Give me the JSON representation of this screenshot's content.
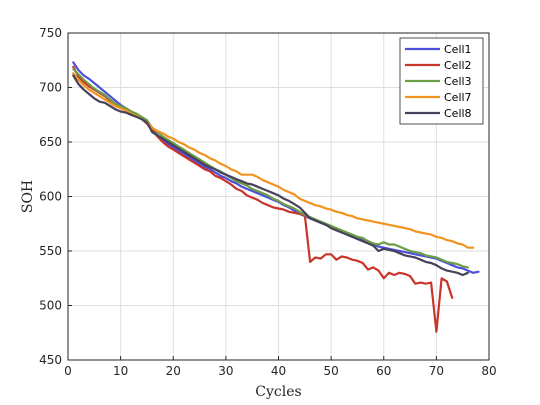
{
  "chart_data": {
    "type": "line",
    "xlabel": "Cycles",
    "ylabel": "SOH",
    "xlim": [
      0,
      80
    ],
    "ylim": [
      450,
      750
    ],
    "xticks": [
      0,
      10,
      20,
      30,
      40,
      50,
      60,
      70,
      80
    ],
    "yticks": [
      450,
      500,
      550,
      600,
      650,
      700,
      750
    ],
    "grid": true,
    "legend_position": "top-right",
    "series": [
      {
        "name": "Cell1",
        "color": "#4f4fdd",
        "x": [
          1,
          2,
          3,
          4,
          5,
          6,
          7,
          8,
          9,
          10,
          11,
          12,
          13,
          14,
          15,
          16,
          17,
          18,
          19,
          20,
          21,
          22,
          23,
          24,
          25,
          26,
          27,
          28,
          29,
          30,
          31,
          32,
          33,
          34,
          35,
          36,
          37,
          38,
          39,
          40,
          41,
          42,
          43,
          44,
          45,
          46,
          47,
          48,
          49,
          50,
          51,
          52,
          53,
          54,
          55,
          56,
          57,
          58,
          59,
          60,
          61,
          62,
          63,
          64,
          65,
          66,
          67,
          68,
          69,
          70,
          71,
          72,
          73,
          74,
          75,
          76,
          77,
          78
        ],
        "y": [
          723,
          716,
          711,
          708,
          704,
          700,
          696,
          692,
          688,
          684,
          681,
          678,
          675,
          672,
          669,
          662,
          656,
          652,
          648,
          645,
          642,
          639,
          636,
          633,
          630,
          627,
          625,
          622,
          619,
          617,
          614,
          612,
          609,
          607,
          605,
          603,
          601,
          599,
          597,
          595,
          592,
          590,
          587,
          584,
          582,
          580,
          578,
          576,
          574,
          572,
          570,
          568,
          566,
          564,
          562,
          560,
          558,
          556,
          554,
          553,
          552,
          551,
          550,
          549,
          548,
          547,
          546,
          545,
          544,
          543,
          541,
          539,
          537,
          535,
          534,
          532,
          530,
          531
        ]
      },
      {
        "name": "Cell2",
        "color": "#c8352b",
        "x": [
          1,
          2,
          3,
          4,
          5,
          6,
          7,
          8,
          9,
          10,
          11,
          12,
          13,
          14,
          15,
          16,
          17,
          18,
          19,
          20,
          21,
          22,
          23,
          24,
          25,
          26,
          27,
          28,
          29,
          30,
          31,
          32,
          33,
          34,
          35,
          36,
          37,
          38,
          39,
          40,
          41,
          42,
          43,
          44,
          45,
          46,
          47,
          48,
          49,
          50,
          51,
          52,
          53,
          54,
          55,
          56,
          57,
          58,
          59,
          60,
          61,
          62,
          63,
          64,
          65,
          66,
          67,
          68,
          69,
          70,
          71,
          72,
          73
        ],
        "y": [
          719,
          710,
          705,
          701,
          698,
          695,
          692,
          688,
          685,
          682,
          680,
          677,
          674,
          671,
          667,
          661,
          655,
          650,
          646,
          643,
          640,
          637,
          634,
          631,
          628,
          625,
          623,
          619,
          617,
          614,
          611,
          607,
          605,
          601,
          599,
          597,
          594,
          592,
          590,
          589,
          588,
          586,
          585,
          584,
          583,
          540,
          544,
          543,
          547,
          547,
          542,
          545,
          544,
          542,
          541,
          539,
          533,
          535,
          532,
          525,
          530,
          528,
          530,
          529,
          527,
          520,
          521,
          520,
          521,
          476,
          525,
          522,
          507
        ]
      },
      {
        "name": "Cell3",
        "color": "#6b9e45",
        "x": [
          1,
          2,
          3,
          4,
          5,
          6,
          7,
          8,
          9,
          10,
          11,
          12,
          13,
          14,
          15,
          16,
          17,
          18,
          19,
          20,
          21,
          22,
          23,
          24,
          25,
          26,
          27,
          28,
          29,
          30,
          31,
          32,
          33,
          34,
          35,
          36,
          37,
          38,
          39,
          40,
          41,
          42,
          43,
          44,
          45,
          46,
          47,
          48,
          49,
          50,
          51,
          52,
          53,
          54,
          55,
          56,
          57,
          58,
          59,
          60,
          61,
          62,
          63,
          64,
          65,
          66,
          67,
          68,
          69,
          70,
          71,
          72,
          73,
          74,
          75,
          76
        ],
        "y": [
          717,
          712,
          707,
          703,
          699,
          696,
          693,
          689,
          685,
          683,
          681,
          678,
          676,
          673,
          670,
          663,
          659,
          655,
          652,
          649,
          646,
          643,
          640,
          637,
          634,
          631,
          628,
          625,
          623,
          620,
          617,
          614,
          612,
          610,
          607,
          605,
          603,
          601,
          598,
          596,
          593,
          591,
          589,
          586,
          583,
          581,
          579,
          577,
          575,
          573,
          571,
          569,
          567,
          565,
          563,
          562,
          559,
          557,
          556,
          558,
          556,
          556,
          554,
          552,
          550,
          549,
          548,
          546,
          545,
          544,
          542,
          540,
          539,
          538,
          536,
          535
        ]
      },
      {
        "name": "Cell7",
        "color": "#f0941f",
        "x": [
          1,
          2,
          3,
          4,
          5,
          6,
          7,
          8,
          9,
          10,
          11,
          12,
          13,
          14,
          15,
          16,
          17,
          18,
          19,
          20,
          21,
          22,
          23,
          24,
          25,
          26,
          27,
          28,
          29,
          30,
          31,
          32,
          33,
          34,
          35,
          36,
          37,
          38,
          39,
          40,
          41,
          42,
          43,
          44,
          45,
          46,
          47,
          48,
          49,
          50,
          51,
          52,
          53,
          54,
          55,
          56,
          57,
          58,
          59,
          60,
          61,
          62,
          63,
          64,
          65,
          66,
          67,
          68,
          69,
          70,
          71,
          72,
          73,
          74,
          75,
          76,
          77
        ],
        "y": [
          713,
          707,
          702,
          698,
          695,
          692,
          689,
          686,
          683,
          681,
          679,
          676,
          674,
          671,
          668,
          663,
          660,
          658,
          655,
          653,
          650,
          648,
          645,
          643,
          640,
          638,
          635,
          633,
          630,
          628,
          625,
          623,
          620,
          620,
          620,
          618,
          615,
          613,
          611,
          609,
          606,
          604,
          602,
          598,
          596,
          594,
          592,
          591,
          589,
          588,
          586,
          585,
          583,
          582,
          580,
          579,
          578,
          577,
          576,
          575,
          574,
          573,
          572,
          571,
          570,
          568,
          567,
          566,
          565,
          563,
          562,
          560,
          559,
          557,
          556,
          553,
          553
        ]
      },
      {
        "name": "Cell8",
        "color": "#45425a",
        "x": [
          1,
          2,
          3,
          4,
          5,
          6,
          7,
          8,
          9,
          10,
          11,
          12,
          13,
          14,
          15,
          16,
          17,
          18,
          19,
          20,
          21,
          22,
          23,
          24,
          25,
          26,
          27,
          28,
          29,
          30,
          31,
          32,
          33,
          34,
          35,
          36,
          37,
          38,
          39,
          40,
          41,
          42,
          43,
          44,
          45,
          46,
          47,
          48,
          49,
          50,
          51,
          52,
          53,
          54,
          55,
          56,
          57,
          58,
          59,
          60,
          61,
          62,
          63,
          64,
          65,
          66,
          67,
          68,
          69,
          70,
          71,
          72,
          73,
          74,
          75,
          76
        ],
        "y": [
          711,
          703,
          698,
          694,
          690,
          687,
          686,
          683,
          680,
          678,
          677,
          675,
          673,
          671,
          668,
          659,
          656,
          653,
          650,
          647,
          644,
          641,
          638,
          635,
          632,
          629,
          627,
          625,
          622,
          620,
          618,
          616,
          614,
          612,
          611,
          609,
          607,
          605,
          603,
          601,
          598,
          596,
          593,
          590,
          585,
          580,
          578,
          576,
          574,
          571,
          569,
          567,
          565,
          563,
          561,
          559,
          557,
          555,
          550,
          552,
          551,
          550,
          548,
          546,
          545,
          544,
          542,
          540,
          539,
          537,
          534,
          532,
          531,
          530,
          528,
          530
        ]
      }
    ]
  }
}
